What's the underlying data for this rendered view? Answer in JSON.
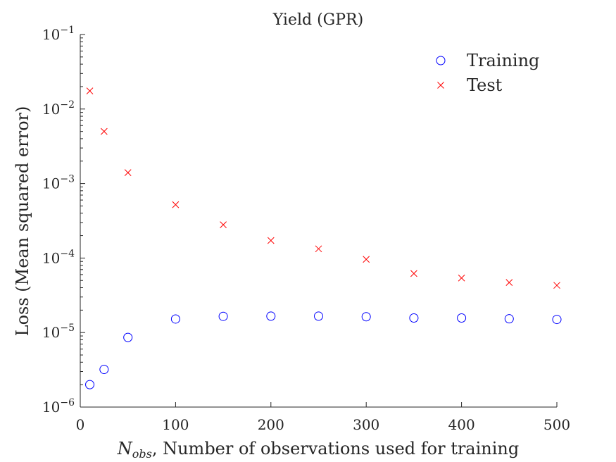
{
  "chart_data": {
    "type": "scatter",
    "title": "Yield (GPR)",
    "xlabel_symbol": "N",
    "xlabel_subscript": "obs",
    "xlabel_rest": ", Number of observations used for training",
    "ylabel": "Loss (Mean squared error)",
    "xlim": [
      0,
      500
    ],
    "ylim": [
      1e-06,
      0.1
    ],
    "yscale": "log",
    "grid": false,
    "legend_position": "top-right",
    "x_ticks": [
      {
        "value": 0,
        "label": "0"
      },
      {
        "value": 100,
        "label": "100"
      },
      {
        "value": 200,
        "label": "200"
      },
      {
        "value": 300,
        "label": "300"
      },
      {
        "value": 400,
        "label": "400"
      },
      {
        "value": 500,
        "label": "500"
      }
    ],
    "y_ticks": [
      {
        "value": 0.1,
        "base": "10",
        "exp": "−1"
      },
      {
        "value": 0.01,
        "base": "10",
        "exp": "−2"
      },
      {
        "value": 0.001,
        "base": "10",
        "exp": "−3"
      },
      {
        "value": 0.0001,
        "base": "10",
        "exp": "−4"
      },
      {
        "value": 1e-05,
        "base": "10",
        "exp": "−5"
      },
      {
        "value": 1e-06,
        "base": "10",
        "exp": "−6"
      }
    ],
    "x": [
      10,
      25,
      50,
      100,
      150,
      200,
      250,
      300,
      350,
      400,
      450,
      500
    ],
    "series": [
      {
        "name": "Training",
        "marker": "circle",
        "color": "#0000ff",
        "values": [
          2e-06,
          3.2e-06,
          8.6e-06,
          1.52e-05,
          1.65e-05,
          1.66e-05,
          1.66e-05,
          1.63e-05,
          1.57e-05,
          1.57e-05,
          1.53e-05,
          1.5e-05
        ]
      },
      {
        "name": "Test",
        "marker": "x",
        "color": "#ff0000",
        "values": [
          0.0175,
          0.005,
          0.0014,
          0.00052,
          0.00028,
          0.000172,
          0.000133,
          9.6e-05,
          6.2e-05,
          5.4e-05,
          4.7e-05,
          4.3e-05
        ]
      }
    ]
  }
}
